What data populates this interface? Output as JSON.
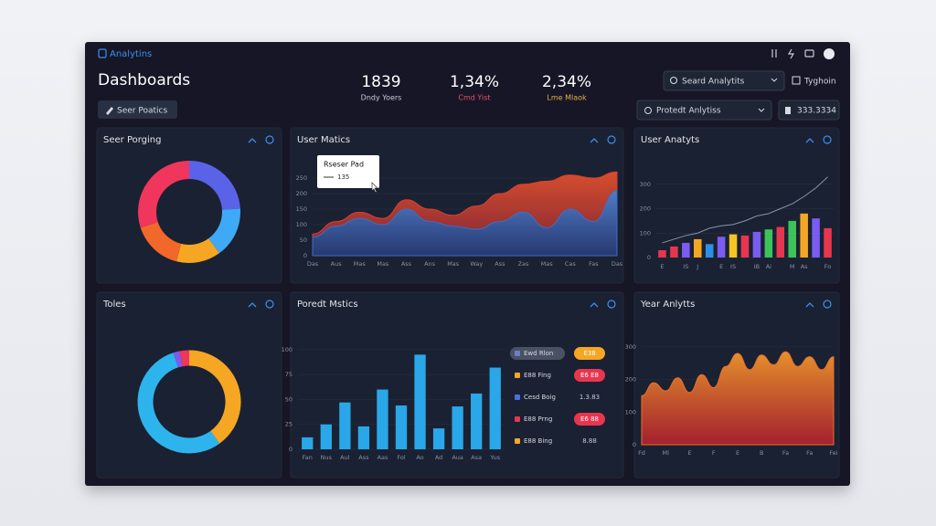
{
  "app": {
    "name": "Analytins"
  },
  "header": {
    "title": "Dashboards",
    "action": "Seer Poatics",
    "search": "Seard Analytits",
    "user": "Tyghoin",
    "select": "Protedt Anlytiss",
    "account": "333.3334"
  },
  "kpis": [
    {
      "value": "1839",
      "label": "Dndy Yoers",
      "color": "#c9ccd6"
    },
    {
      "value": "1,34%",
      "label": "Cmd Yist",
      "color": "#ef4f6b"
    },
    {
      "value": "2,34%",
      "label": "Lme Mlaok",
      "color": "#e7b24a"
    }
  ],
  "panels": [
    {
      "title": "Seer Porging",
      "chart": {
        "type": "donut",
        "values": [
          24,
          16,
          14,
          16,
          30
        ],
        "colors": [
          "#5a63e8",
          "#3fa9f5",
          "#f5a623",
          "#f2672a",
          "#f0365c"
        ]
      }
    },
    {
      "title": "User Matics",
      "chart": {
        "type": "area",
        "categories": [
          "Das",
          "Aus",
          "Mas",
          "Mas",
          "Ass",
          "Ans",
          "Mas",
          "Way",
          "Ass",
          "Zas",
          "Mas",
          "Cas",
          "Fas",
          "Das"
        ],
        "ylim": [
          0,
          300
        ],
        "yticks": [
          0,
          50,
          100,
          150,
          200,
          250
        ],
        "series": [
          {
            "color": "#d9402d",
            "gradient": [
              "#e0502c",
              "#8a2438"
            ],
            "values": [
              70,
              110,
              140,
              120,
              180,
              150,
              130,
              160,
              200,
              230,
              240,
              260,
              250,
              270
            ]
          },
          {
            "color": "#3b6fc4",
            "gradient": [
              "#4a7fd0",
              "#1d3a78"
            ],
            "values": [
              60,
              95,
              120,
              100,
              150,
              110,
              95,
              85,
              110,
              140,
              90,
              150,
              110,
              210
            ]
          }
        ],
        "tooltip": {
          "title": "Rseser Pad",
          "value": "135"
        }
      }
    },
    {
      "title": "User Anatyts",
      "chart": {
        "type": "bar-line",
        "categories": [
          "E",
          null,
          "IS",
          "J",
          null,
          "E",
          "IS",
          null,
          "IB",
          "Ai",
          null,
          "M",
          "As",
          null,
          "Fo"
        ],
        "ylim": [
          0,
          400
        ],
        "yticks": [
          0,
          100,
          200,
          300
        ],
        "bars": {
          "values": [
            30,
            45,
            60,
            75,
            55,
            85,
            95,
            90,
            105,
            115,
            125,
            150,
            180,
            160,
            120
          ],
          "colors": [
            "#e8364f",
            "#e8364f",
            "#7b5cf0",
            "#f5a623",
            "#2e8fe6",
            "#7b5cf0",
            "#f5c623",
            "#e8364f",
            "#7b5cf0",
            "#3cc35a",
            "#e8364f",
            "#3cc35a",
            "#f5a623",
            "#7b5cf0",
            "#e8364f"
          ]
        },
        "line": {
          "color": "#8a93a8",
          "values": [
            60,
            75,
            90,
            100,
            120,
            130,
            135,
            150,
            170,
            180,
            200,
            220,
            250,
            285,
            330
          ]
        }
      }
    },
    {
      "title": "Toles",
      "chart": {
        "type": "donut",
        "values": [
          40,
          55,
          2,
          3
        ],
        "colors": [
          "#f5a623",
          "#2eb4ec",
          "#7b5cf0",
          "#f0365c"
        ]
      }
    },
    {
      "title": "Poredt Mstics",
      "chart": {
        "type": "bar",
        "categories": [
          "Fan",
          "Nus",
          "Aul",
          "Ass",
          "Aas",
          "Fol",
          "Ao",
          "Ad",
          "Aua",
          "Asa",
          "Yus"
        ],
        "ylim": [
          0,
          110
        ],
        "yticks": [
          0,
          25,
          50,
          75,
          100
        ],
        "color": "#2aa7e8",
        "values": [
          12,
          25,
          47,
          23,
          60,
          44,
          95,
          21,
          43,
          56,
          82
        ]
      },
      "list": [
        {
          "label": "Ewd Rlon",
          "dot": "#6b7fc9",
          "badge": "E38",
          "badge_color": "#f5a623"
        },
        {
          "label": "E88 Fing",
          "dot": "#f5a623",
          "badge": "E6 E8",
          "badge_color": "#e8364f"
        },
        {
          "label": "Cesd Boig",
          "dot": "#4a6fe0",
          "badge": "1.3.83",
          "badge_color": null
        },
        {
          "label": "E88 Prng",
          "dot": "#e8364f",
          "badge": "E6 88",
          "badge_color": "#e8364f"
        },
        {
          "label": "E88 Bing",
          "dot": "#f5a623",
          "badge": "8.88",
          "badge_color": null
        }
      ]
    },
    {
      "title": "Year Anlytts",
      "chart": {
        "type": "area",
        "categories": [
          "Fd",
          null,
          "Ml",
          null,
          "E",
          null,
          "F",
          null,
          "E",
          null,
          "B",
          null,
          "Fa",
          null,
          "Fa",
          null,
          "Fei"
        ],
        "ylim": [
          0,
          350
        ],
        "yticks": [
          0,
          100,
          200,
          300
        ],
        "series": [
          {
            "color": "#e8702a",
            "gradient": [
              "#f0962b",
              "#b3202e"
            ],
            "values": [
              150,
              190,
              165,
              205,
              160,
              215,
              175,
              240,
              280,
              230,
              275,
              245,
              285,
              240,
              270,
              230,
              270
            ]
          }
        ]
      }
    }
  ]
}
